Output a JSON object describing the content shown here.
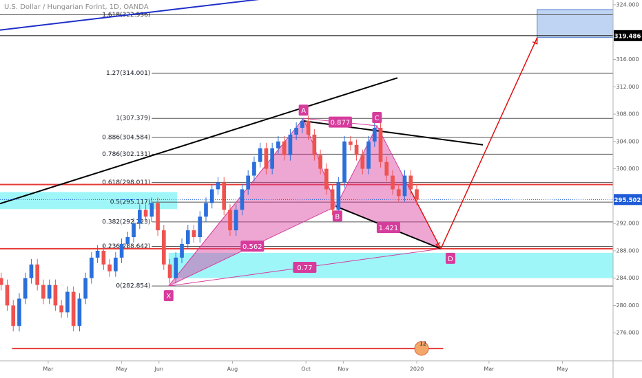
{
  "chart_data": {
    "type": "candlestick",
    "title": "U.S. Dollar / Hungarian Forint, 1D, OANDA",
    "up_color": "#2a6fdb",
    "down_color": "#ef5350",
    "x": [
      20,
      25,
      30,
      35,
      40,
      45,
      50,
      55,
      60,
      65,
      70,
      75,
      80,
      85,
      90,
      95,
      100,
      105,
      110,
      115,
      120,
      125,
      130,
      135,
      140,
      145,
      150,
      155,
      160,
      165,
      170,
      175,
      180,
      185,
      190,
      195,
      200,
      205,
      210,
      215,
      220,
      225,
      230,
      235,
      240,
      245,
      250,
      255,
      260,
      265,
      270,
      275,
      280,
      285,
      290,
      295,
      300,
      305,
      310,
      315,
      320,
      325,
      330,
      335,
      340,
      345,
      350,
      355,
      360,
      365
    ],
    "open": [
      284,
      283,
      280,
      277,
      281,
      284,
      286,
      283,
      281,
      283,
      280,
      279,
      282,
      277,
      281,
      284,
      287,
      288,
      286,
      285,
      287,
      289,
      290,
      292,
      294,
      293,
      295,
      291,
      286,
      284,
      287,
      289,
      291,
      290,
      293,
      295,
      297,
      298,
      294,
      291,
      294,
      297,
      299,
      301,
      303,
      300,
      303,
      304,
      302,
      305,
      306,
      307,
      305,
      302,
      300,
      297,
      294,
      298,
      304,
      303.5,
      302,
      300,
      304,
      306,
      301,
      299,
      297,
      296,
      299,
      297
    ],
    "high": [
      284.8,
      283.8,
      280.8,
      281.8,
      284.8,
      286.8,
      286.8,
      283.8,
      283.8,
      283.8,
      280.8,
      282.8,
      282.8,
      281.8,
      284.8,
      287.8,
      288.8,
      288.8,
      286.8,
      287.8,
      289.8,
      290.8,
      292.8,
      294.8,
      294.8,
      295.8,
      295.8,
      291.8,
      286.8,
      287.8,
      289.8,
      291.8,
      291.8,
      293.8,
      295.8,
      297.8,
      298.8,
      298.8,
      294.8,
      294.8,
      297.8,
      299.8,
      301.8,
      303.8,
      303.8,
      303.8,
      304.8,
      304.8,
      305.8,
      306.8,
      307.4,
      307.8,
      305.8,
      302.8,
      300.8,
      297.8,
      298.8,
      304.8,
      304.8,
      304.3,
      302.8,
      304.8,
      306.8,
      306.8,
      301.8,
      299.8,
      297.8,
      299.8,
      299.8,
      297.8
    ],
    "low": [
      282.2,
      279.2,
      276.2,
      276.2,
      280.2,
      283.2,
      282.2,
      280.2,
      280.2,
      279.2,
      278.2,
      278.2,
      276.2,
      276.2,
      280.2,
      283.2,
      286.2,
      285.2,
      284.2,
      284.2,
      286.2,
      288.2,
      289.2,
      291.2,
      292.2,
      292.2,
      290.2,
      285.2,
      283.2,
      283.2,
      286.2,
      288.2,
      289.2,
      289.2,
      292.2,
      294.2,
      296.2,
      293.2,
      290.2,
      290.2,
      293.2,
      296.2,
      298.2,
      300.2,
      299.2,
      299.2,
      302.2,
      301.2,
      301.2,
      304.2,
      305.2,
      304.2,
      301.2,
      299.2,
      296.2,
      293.2,
      293.2,
      297.2,
      302.7,
      301.2,
      299.2,
      299.2,
      303.2,
      300.2,
      298.2,
      296.2,
      295.2,
      295.2,
      296.2,
      294.7
    ],
    "close": [
      283,
      280,
      277,
      281,
      284,
      286,
      283,
      281,
      283,
      280,
      279,
      282,
      277,
      281,
      284,
      287,
      288,
      286,
      285,
      287,
      289,
      290,
      292,
      294,
      293,
      295,
      291,
      286,
      284,
      287,
      289,
      291,
      290,
      293,
      295,
      297,
      298,
      294,
      291,
      294,
      297,
      299,
      301,
      303,
      300,
      303,
      304,
      302,
      305,
      306,
      307,
      305,
      302,
      300,
      297,
      294,
      298,
      304,
      303.5,
      302,
      300,
      304,
      306,
      301,
      299,
      297,
      296,
      299,
      297,
      295.5
    ],
    "xlim": [
      19,
      528
    ],
    "ylim": [
      271.9,
      324.7
    ],
    "xticks": [
      {
        "value": 59,
        "label": "Mar"
      },
      {
        "value": 120,
        "label": "May"
      },
      {
        "value": 151,
        "label": "Jun"
      },
      {
        "value": 212,
        "label": "Aug"
      },
      {
        "value": 273,
        "label": "Oct"
      },
      {
        "value": 304,
        "label": "Nov"
      },
      {
        "value": 365,
        "label": "2020"
      },
      {
        "value": 425,
        "label": "Mar"
      },
      {
        "value": 486,
        "label": "May"
      }
    ],
    "yticks": [
      {
        "value": 324,
        "label": "324.000"
      },
      {
        "value": 316,
        "label": "316.000"
      },
      {
        "value": 312,
        "label": "312.000"
      },
      {
        "value": 308,
        "label": "308.000"
      },
      {
        "value": 304,
        "label": "304.000"
      },
      {
        "value": 300,
        "label": "300.000"
      },
      {
        "value": 292,
        "label": "292.000"
      },
      {
        "value": 288,
        "label": "288.000"
      },
      {
        "value": 284,
        "label": "284.000"
      },
      {
        "value": 280,
        "label": "280.000"
      },
      {
        "value": 276,
        "label": "276.000"
      }
    ],
    "fib_start": 145,
    "fib_levels": [
      {
        "label": "1.618(322.536)",
        "value": 322.536
      },
      {
        "label": "1.27(314.001)",
        "value": 314.001
      },
      {
        "label": "1(307.379)",
        "value": 307.379
      },
      {
        "label": "0.886(304.584)",
        "value": 304.584
      },
      {
        "label": "0.786(302.131)",
        "value": 302.131
      },
      {
        "label": "0.618(298.011)",
        "value": 298.011
      },
      {
        "label": "0.5(295.117)",
        "value": 295.117
      },
      {
        "label": "0.382(292.223)",
        "value": 292.223
      },
      {
        "label": "0.236(288.642)",
        "value": 288.642
      },
      {
        "label": "0(282.854)",
        "value": 282.854
      }
    ],
    "horizontal_lines": [
      {
        "value": 319.486,
        "x": [
          19,
          528
        ],
        "color": "#000000"
      },
      {
        "value": 297.7,
        "x": [
          19,
          528
        ],
        "color": "#e53935"
      },
      {
        "value": 288.3,
        "x": [
          19,
          528
        ],
        "color": "#e53935"
      },
      {
        "value": 273.7,
        "x": [
          29,
          387
        ],
        "color": "#e53935"
      }
    ],
    "zones": [
      {
        "low": 294.1,
        "high": 296.6,
        "x": [
          19,
          166
        ],
        "color": "#7ff3f7"
      },
      {
        "low": 284.0,
        "high": 287.7,
        "x": [
          159,
          528
        ],
        "color": "#7ff3f7"
      },
      {
        "low": 319.2,
        "high": 323.3,
        "x": [
          465,
          528
        ],
        "color": "#a9c4ee"
      }
    ],
    "trend_lines": [
      {
        "x": [
          19,
          239
        ],
        "y": [
          320.3,
          324.9
        ],
        "color": "#1f2fc9",
        "width": 2
      },
      {
        "x": [
          19,
          349
        ],
        "y": [
          294.9,
          313.3
        ],
        "color": "#000000",
        "width": 2
      },
      {
        "x": [
          271,
          420
        ],
        "y": [
          307.0,
          303.5
        ],
        "color": "#000000",
        "width": 2
      },
      {
        "x": [
          298,
          385
        ],
        "y": [
          294.5,
          288.3
        ],
        "color": "#000000",
        "width": 2
      },
      {
        "x": [
          385,
          465
        ],
        "y": [
          288.3,
          319.2
        ],
        "color": "#e01010",
        "width": 1.5
      },
      {
        "x": [
          358,
          385
        ],
        "y": [
          297.5,
          288.3
        ],
        "color": "#e01010",
        "width": 1.5
      }
    ],
    "pattern": {
      "color": "#d63c9c",
      "points": [
        {
          "label": "X",
          "x": 159,
          "y": 282.854
        },
        {
          "label": "A",
          "x": 271,
          "y": 307.379
        },
        {
          "label": "B",
          "x": 298,
          "y": 294.5
        },
        {
          "label": "C",
          "x": 332,
          "y": 306.3
        },
        {
          "label": "D",
          "x": 385,
          "y": 288.3
        }
      ],
      "ratios": [
        0.877,
        0.562,
        1.421,
        0.77
      ]
    },
    "price_tags": [
      {
        "value": 319.486,
        "color": "#000000"
      },
      {
        "value": 295.502,
        "color": "#1e5bd6"
      }
    ],
    "badge": "12"
  }
}
